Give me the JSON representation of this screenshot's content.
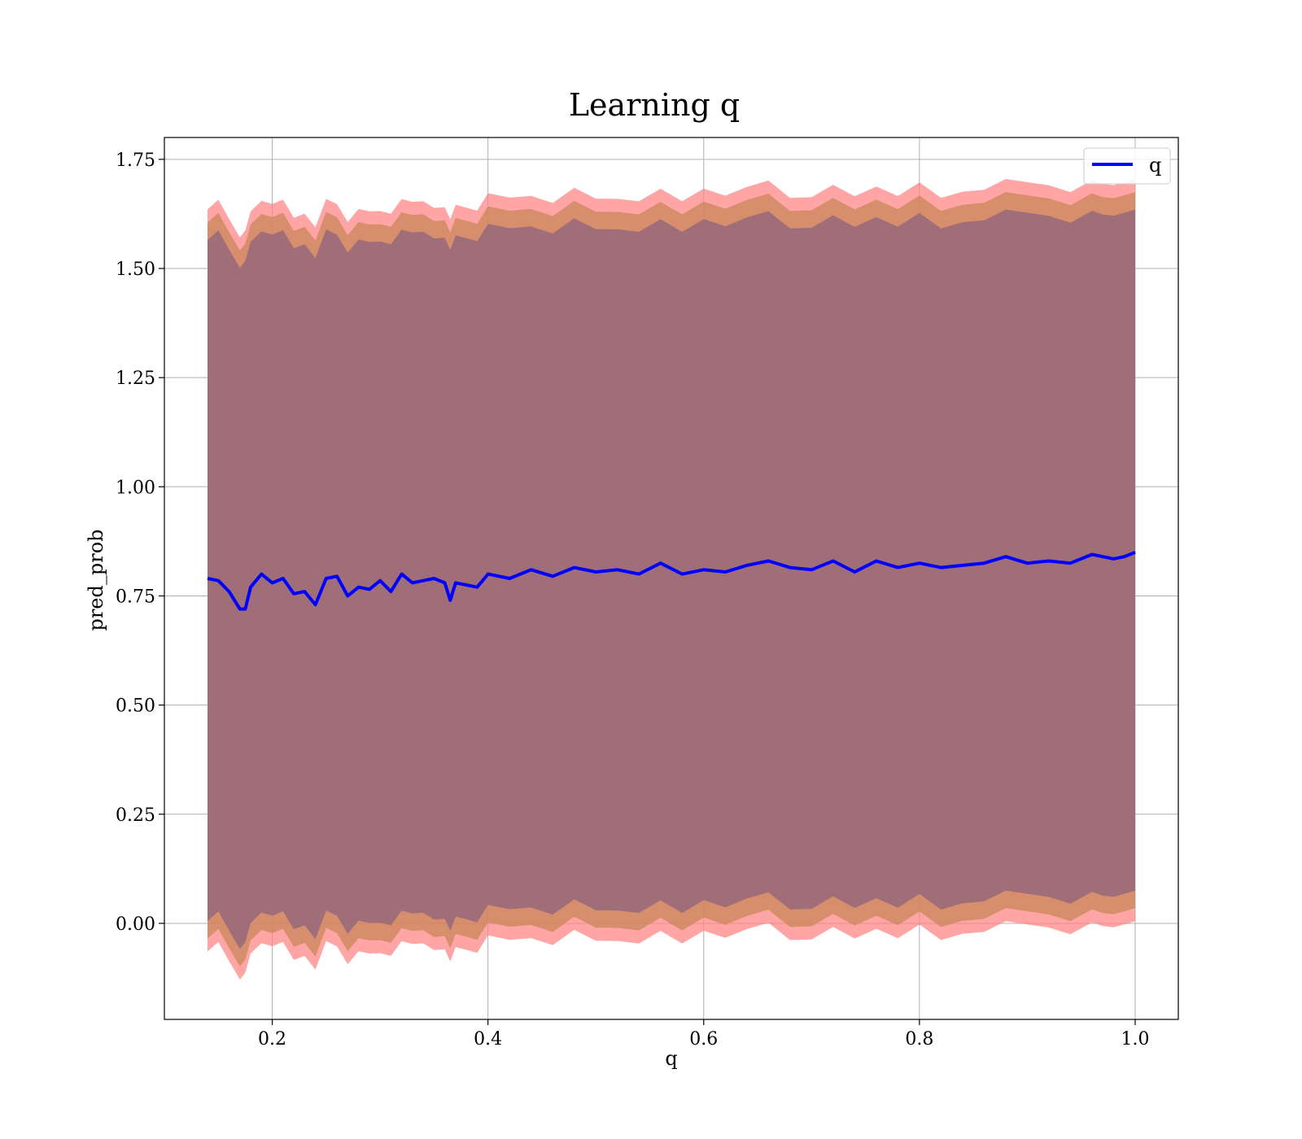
{
  "chart_data": {
    "type": "area",
    "title": "Learning q",
    "xlabel": "q",
    "ylabel": "pred_prob",
    "xlim": [
      0.1,
      1.04
    ],
    "ylim": [
      -0.22,
      1.8
    ],
    "x_ticks": [
      0.2,
      0.4,
      0.6,
      0.8,
      1.0
    ],
    "x_tick_labels": [
      "0.2",
      "0.4",
      "0.6",
      "0.8",
      "1.0"
    ],
    "y_ticks": [
      0.0,
      0.25,
      0.5,
      0.75,
      1.0,
      1.25,
      1.5,
      1.75
    ],
    "y_tick_labels": [
      "0.00",
      "0.25",
      "0.50",
      "0.75",
      "1.00",
      "1.25",
      "1.50",
      "1.75"
    ],
    "grid": true,
    "legend": {
      "placement": "top-right",
      "entries": [
        {
          "label": "q",
          "color": "#0000ff"
        }
      ]
    },
    "colors": {
      "line": "#0000ff",
      "outer_band": "#ff7f7f",
      "middle_band": "#c8875a",
      "inner_band": "#a06e78",
      "grid": "#b0b0b0"
    },
    "series": [
      {
        "name": "q",
        "x": [
          0.14,
          0.15,
          0.16,
          0.17,
          0.175,
          0.18,
          0.19,
          0.2,
          0.21,
          0.22,
          0.23,
          0.24,
          0.25,
          0.26,
          0.27,
          0.28,
          0.29,
          0.3,
          0.31,
          0.32,
          0.33,
          0.34,
          0.35,
          0.36,
          0.365,
          0.37,
          0.38,
          0.39,
          0.4,
          0.42,
          0.44,
          0.46,
          0.48,
          0.5,
          0.52,
          0.54,
          0.56,
          0.58,
          0.6,
          0.62,
          0.64,
          0.66,
          0.68,
          0.7,
          0.72,
          0.74,
          0.76,
          0.78,
          0.8,
          0.82,
          0.84,
          0.86,
          0.88,
          0.9,
          0.92,
          0.94,
          0.96,
          0.97,
          0.98,
          0.99,
          1.0
        ],
        "y": [
          0.79,
          0.785,
          0.76,
          0.72,
          0.72,
          0.77,
          0.8,
          0.78,
          0.79,
          0.755,
          0.76,
          0.73,
          0.79,
          0.795,
          0.75,
          0.77,
          0.765,
          0.785,
          0.76,
          0.8,
          0.78,
          0.785,
          0.79,
          0.78,
          0.74,
          0.78,
          0.775,
          0.77,
          0.8,
          0.79,
          0.81,
          0.795,
          0.815,
          0.805,
          0.81,
          0.8,
          0.825,
          0.8,
          0.81,
          0.805,
          0.82,
          0.83,
          0.815,
          0.81,
          0.83,
          0.805,
          0.83,
          0.815,
          0.825,
          0.815,
          0.82,
          0.825,
          0.84,
          0.825,
          0.83,
          0.825,
          0.845,
          0.84,
          0.835,
          0.84,
          0.85
        ]
      }
    ]
  }
}
